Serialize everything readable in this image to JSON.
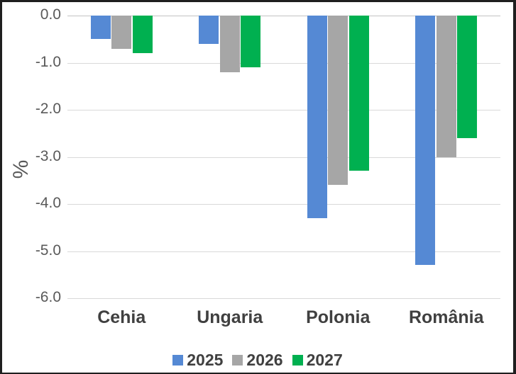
{
  "chart_data": {
    "type": "bar",
    "title": "",
    "categories": [
      "Cehia",
      "Ungaria",
      "Polonia",
      "România"
    ],
    "series": [
      {
        "name": "2025",
        "color": "#5589D4",
        "values": [
          -0.5,
          -0.6,
          -4.3,
          -5.3
        ]
      },
      {
        "name": "2026",
        "color": "#A6A6A6",
        "values": [
          -0.7,
          -1.2,
          -3.6,
          -3.0
        ]
      },
      {
        "name": "2027",
        "color": "#00B050",
        "values": [
          -0.8,
          -1.1,
          -3.3,
          -2.6
        ]
      }
    ],
    "xlabel": "",
    "ylabel": "%",
    "ylim": [
      0,
      -6
    ],
    "ytick_labels": [
      "0.0",
      "-1.0",
      "-2.0",
      "-3.0",
      "-4.0",
      "-5.0",
      "-6.0"
    ],
    "grid": true,
    "legend_position": "bottom"
  },
  "colors": {
    "gridline": "#D9D9D9",
    "zero_line": "#C3C3C3",
    "tick_text": "#595959",
    "label_text": "#404040",
    "frame_border": "#1F1F1F"
  }
}
